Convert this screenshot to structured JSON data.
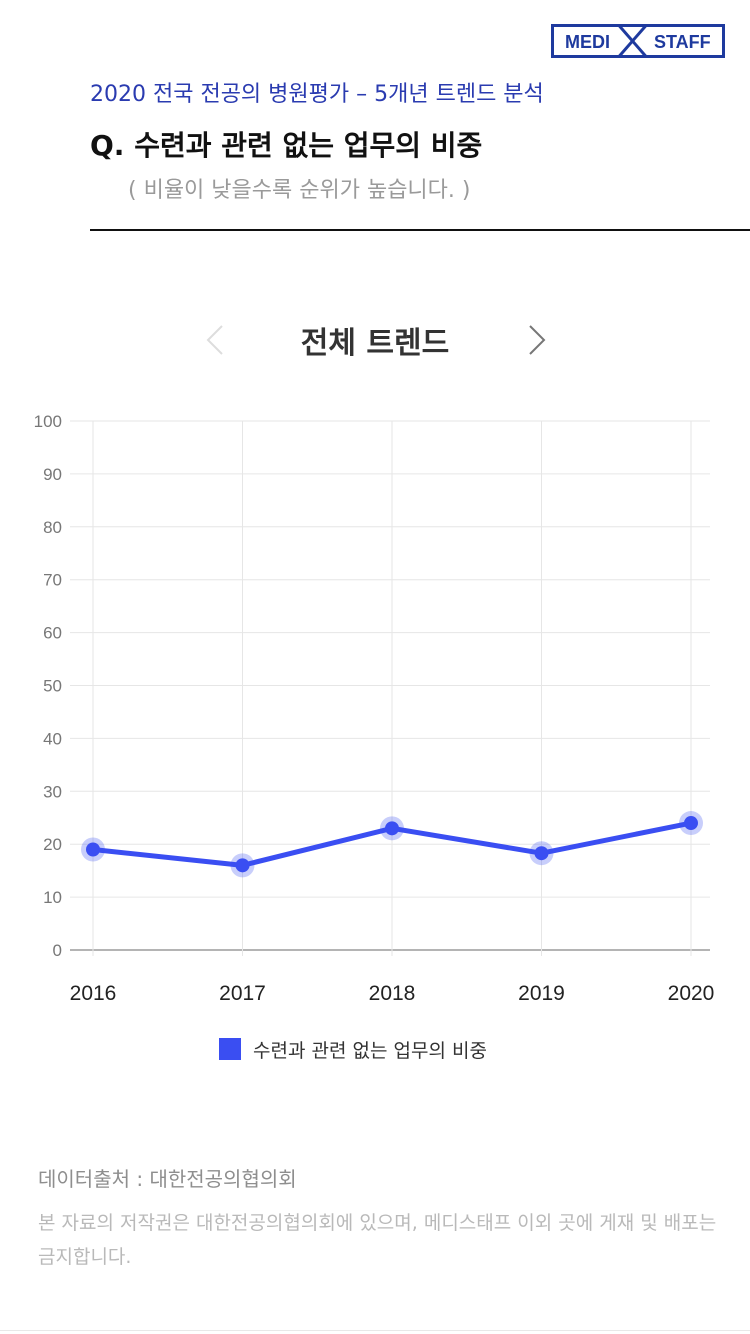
{
  "brand": {
    "left": "MEDI",
    "right": "STAFF",
    "color": "#1e3a9e"
  },
  "header": {
    "subtitle": "2020 전국 전공의 병원평가 – 5개년 트렌드 분석",
    "question": "Q. 수련과 관련 없는 업무의 비중",
    "note": "( 비율이 낮을수록 순위가 높습니다. )"
  },
  "nav": {
    "title": "전체 트렌드",
    "prev_icon": "chevron-left-icon",
    "next_icon": "chevron-right-icon"
  },
  "chart_data": {
    "type": "line",
    "x": [
      "2016",
      "2017",
      "2018",
      "2019",
      "2020"
    ],
    "series": [
      {
        "name": "수련과 관련 없는 업무의 비중",
        "values": [
          19,
          16,
          23,
          18.3,
          24
        ],
        "color": "#3a4ef2"
      }
    ],
    "ylim": [
      0,
      100
    ],
    "yticks": [
      "0",
      "10",
      "20",
      "30",
      "40",
      "50",
      "60",
      "70",
      "80",
      "90",
      "100"
    ],
    "grid": true,
    "legend": "bottom-center",
    "title": "",
    "xlabel": "",
    "ylabel": ""
  },
  "footer": {
    "source": "데이터출처 : 대한전공의협의회",
    "copyright": "본 자료의 저작권은 대한전공의협의회에 있으며, 메디스태프 이외 곳에 게재 및 배포는 금지합니다."
  }
}
